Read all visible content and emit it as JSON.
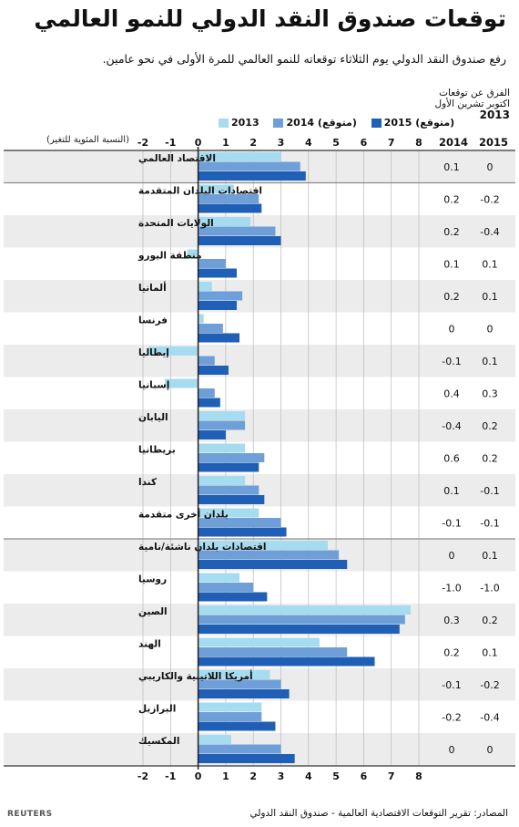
{
  "title": "توقعات صندوق النقد الدولي للنمو العالمي",
  "subtitle": "رفع صندوق النقد الدولي يوم الثلاثاء توقعاته للنمو العالمي للمرة الأولى في نحو عامين.",
  "diff_header": {
    "line1": "الفرق عن توقعات",
    "line2": "اكتوبر تشرين الأول",
    "year": "2013"
  },
  "unit_label": "(النسبة المئوية للتغير)",
  "source": "المصادر: تقرير التوقعات الاقتصادية العالمية - صندوق النقد الدولي",
  "logo": "REUTERS",
  "colors": {
    "c2013": "#a6dcef",
    "c2014": "#6f9fd8",
    "c2015": "#1f5fb5",
    "band": "#ececec"
  },
  "chart_data": {
    "type": "bar",
    "orientation": "horizontal",
    "xlim": [
      -2,
      8
    ],
    "xticks": [
      "-2",
      "-1",
      "0",
      "1",
      "2",
      "3",
      "4",
      "5",
      "6",
      "7",
      "8"
    ],
    "categories": [
      "الاقتصاد العالمي",
      "اقتصادات البلدان المتقدمة",
      "الولايات المتحدة",
      "منطقة اليورو",
      "ألمانيا",
      "فرنسا",
      "إيطاليا",
      "إسبانيا",
      "اليابان",
      "بريطانيا",
      "كندا",
      "بلدان أخرى متقدمة",
      "اقتصادات بلدان ناشئة/نامية",
      "روسيا",
      "الصين",
      "الهند",
      "أمريكا اللاتينية والكاريبي",
      "البرازيل",
      "المكسيك"
    ],
    "series": [
      {
        "name": "2013",
        "values": [
          3.0,
          1.3,
          1.9,
          -0.4,
          0.5,
          0.2,
          -1.8,
          -1.2,
          1.7,
          1.7,
          1.7,
          2.2,
          4.7,
          1.5,
          7.7,
          4.4,
          2.6,
          2.3,
          1.2
        ]
      },
      {
        "name": "2014 (متوقع)",
        "values": [
          3.7,
          2.2,
          2.8,
          1.0,
          1.6,
          0.9,
          0.6,
          0.6,
          1.7,
          2.4,
          2.2,
          3.0,
          5.1,
          2.0,
          7.5,
          5.4,
          3.0,
          2.3,
          3.0
        ]
      },
      {
        "name": "2015 (متوقع)",
        "values": [
          3.9,
          2.3,
          3.0,
          1.4,
          1.4,
          1.5,
          1.1,
          0.8,
          1.0,
          2.2,
          2.4,
          3.2,
          5.4,
          2.5,
          7.3,
          6.4,
          3.3,
          2.8,
          3.5
        ]
      }
    ],
    "diff_columns": [
      "2014",
      "2015"
    ],
    "diff_values": [
      [
        "0.1",
        "0"
      ],
      [
        "0.2",
        "-0.2"
      ],
      [
        "0.2",
        "-0.4"
      ],
      [
        "0.1",
        "0.1"
      ],
      [
        "0.2",
        "0.1"
      ],
      [
        "0",
        "0"
      ],
      [
        "-0.1",
        "0.1"
      ],
      [
        "0.4",
        "0.3"
      ],
      [
        "-0.4",
        "0.2"
      ],
      [
        "0.6",
        "0.2"
      ],
      [
        "0.1",
        "-0.1"
      ],
      [
        "-0.1",
        "-0.1"
      ],
      [
        "0",
        "0.1"
      ],
      [
        "-1.0",
        "-1.0"
      ],
      [
        "0.3",
        "0.2"
      ],
      [
        "0.2",
        "0.1"
      ],
      [
        "-0.1",
        "-0.2"
      ],
      [
        "-0.2",
        "-0.4"
      ],
      [
        "0",
        "0"
      ]
    ]
  }
}
